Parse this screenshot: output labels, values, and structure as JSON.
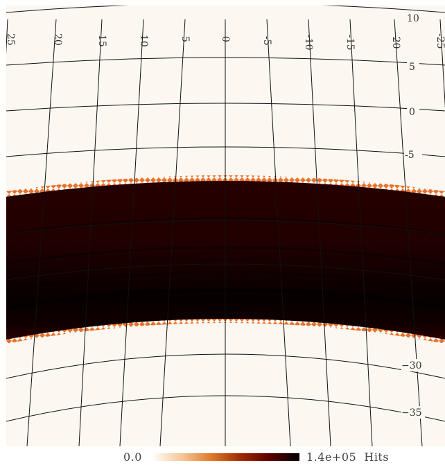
{
  "map": {
    "background_color": "#fcf8f1",
    "band_color": "#1e0000",
    "band_core_color": "#050000",
    "edge_color": "#c84a00",
    "grid_color": "#111111",
    "longitude_labels": [
      "25",
      "20",
      "15",
      "10",
      "5",
      "0",
      "-5",
      "-10",
      "-15",
      "-20",
      "-25"
    ],
    "latitude_labels_right": [
      "10",
      "5",
      "0",
      "-5"
    ],
    "latitude_labels_bottom": [
      "30",
      "35"
    ]
  },
  "colorbar": {
    "min_label": "0.0",
    "max_label": "1.4e+05",
    "unit": "Hits",
    "max_text": "1.4e+05  Hits",
    "gradient_stops": [
      "#ffffff",
      "#f6c89a",
      "#e07b2a",
      "#a02a00",
      "#5a0000",
      "#000000"
    ]
  }
}
